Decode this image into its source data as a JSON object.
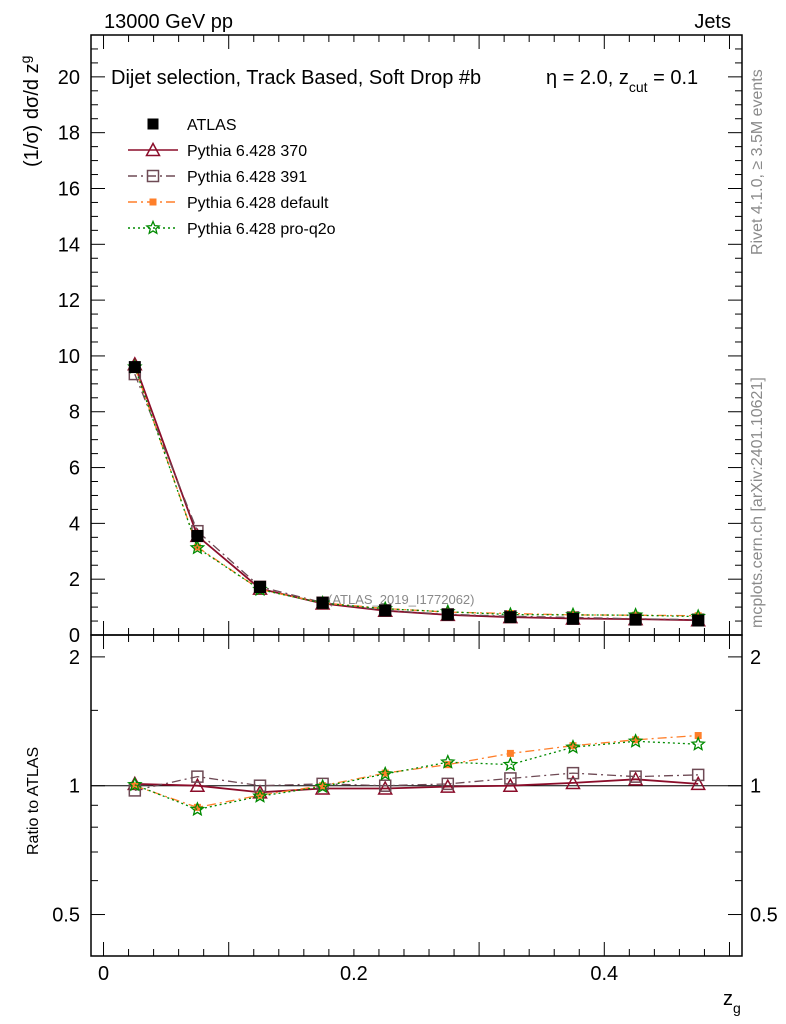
{
  "header": {
    "energy_label": "13000 GeV pp",
    "category_label": "Jets"
  },
  "side": {
    "rivet_label": "Rivet 4.1.0, ≥ 3.5M events",
    "source_label": "mcplots.cern.ch [arXiv:2401.10621]"
  },
  "chart_data": [
    {
      "type": "line",
      "panel": "main",
      "title": "Dijet selection, Track Based, Soft Drop #b",
      "title_tail": "η = 2.0, z",
      "title_sub": "cut",
      "title_end": " = 0.1",
      "ylabel": "(1/σ) dσ/d z",
      "ylabel_sub": "g",
      "xlabel": "",
      "xlim": [
        -0.01,
        0.51
      ],
      "ylim": [
        0,
        21.5
      ],
      "yticks": [
        "0",
        "2",
        "4",
        "6",
        "8",
        "10",
        "12",
        "14",
        "16",
        "18",
        "20"
      ],
      "watermark": "(ATLAS_2019_I1772062)",
      "legend": "top-left",
      "x": [
        0.025,
        0.075,
        0.125,
        0.175,
        0.225,
        0.275,
        0.325,
        0.375,
        0.425,
        0.475
      ],
      "series": [
        {
          "name": "ATLAS",
          "color": "#000000",
          "marker": "square-filled",
          "line": "none",
          "values": [
            9.6,
            3.55,
            1.72,
            1.15,
            0.88,
            0.73,
            0.64,
            0.58,
            0.55,
            0.52
          ]
        },
        {
          "name": "Pythia 6.428 370",
          "color": "#8b0d2a",
          "marker": "triangle-open",
          "line": "solid",
          "values": [
            9.7,
            3.55,
            1.66,
            1.13,
            0.87,
            0.72,
            0.64,
            0.59,
            0.57,
            0.53
          ]
        },
        {
          "name": "Pythia 6.428 391",
          "color": "#6e4a55",
          "marker": "square-open",
          "line": "dashdot",
          "values": [
            9.35,
            3.72,
            1.73,
            1.16,
            0.88,
            0.74,
            0.67,
            0.63,
            0.58,
            0.55
          ]
        },
        {
          "name": "Pythia 6.428 default",
          "color": "#ff7f2a",
          "marker": "square-filled",
          "line": "dashdot",
          "values": [
            9.6,
            3.15,
            1.63,
            1.15,
            0.95,
            0.82,
            0.77,
            0.72,
            0.71,
            0.69
          ]
        },
        {
          "name": "Pythia 6.428 pro-q2o",
          "color": "#008a00",
          "marker": "star",
          "line": "dotted",
          "values": [
            9.6,
            3.12,
            1.63,
            1.14,
            0.94,
            0.83,
            0.73,
            0.72,
            0.71,
            0.66
          ]
        }
      ]
    },
    {
      "type": "line",
      "panel": "ratio",
      "ylabel": "Ratio to ATLAS",
      "xlabel": "z",
      "xlabel_sub": "g",
      "xlim": [
        -0.01,
        0.51
      ],
      "ylim": [
        0.4,
        2.25
      ],
      "yticks": [
        "0.5",
        "1",
        "2"
      ],
      "xticks": [
        "0",
        "0.2",
        "0.4"
      ],
      "x": [
        0.025,
        0.075,
        0.125,
        0.175,
        0.225,
        0.275,
        0.325,
        0.375,
        0.425,
        0.475
      ],
      "series": [
        {
          "name": "Pythia 6.428 370",
          "values": [
            1.01,
            1.0,
            0.965,
            0.985,
            0.985,
            0.995,
            1.0,
            1.015,
            1.035,
            1.01
          ]
        },
        {
          "name": "Pythia 6.428 391",
          "values": [
            0.975,
            1.05,
            1.0,
            1.01,
            1.0,
            1.01,
            1.04,
            1.07,
            1.05,
            1.06
          ]
        },
        {
          "name": "Pythia 6.428 default",
          "values": [
            1.0,
            0.89,
            0.95,
            1.0,
            1.07,
            1.12,
            1.19,
            1.24,
            1.28,
            1.31
          ]
        },
        {
          "name": "Pythia 6.428 pro-q2o",
          "values": [
            1.005,
            0.88,
            0.945,
            0.995,
            1.065,
            1.135,
            1.12,
            1.23,
            1.27,
            1.25
          ]
        }
      ]
    }
  ]
}
